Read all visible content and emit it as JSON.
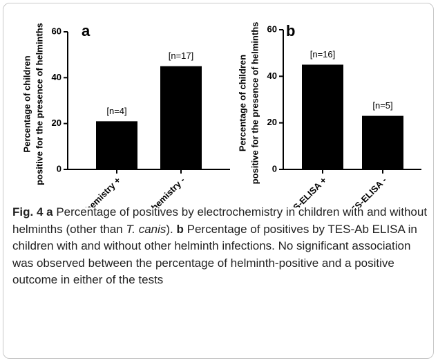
{
  "chart_data": [
    {
      "type": "bar",
      "panel": "a",
      "ylabel": [
        "Percentage of children",
        "positive for the presence of helminths"
      ],
      "categories": [
        "Electrochemistry +",
        "Electrochemistry -"
      ],
      "values": [
        21,
        45
      ],
      "annotations": [
        "[n=4]",
        "[n=17]"
      ],
      "color": "#000000",
      "ylim": [
        0,
        60
      ],
      "yticks": [
        0,
        20,
        40,
        60
      ]
    },
    {
      "type": "bar",
      "panel": "b",
      "ylabel": [
        "Percentage of children",
        "positive for the presence of helminths"
      ],
      "categories": [
        "Ab TES-ELISA +",
        "Ab TES-ELISA -"
      ],
      "values": [
        45,
        23
      ],
      "annotations": [
        "[n=16]",
        "[n=5]"
      ],
      "color": "#000000",
      "ylim": [
        0,
        60
      ],
      "yticks": [
        0,
        20,
        40,
        60
      ]
    }
  ],
  "caption": [
    {
      "text": "Fig. 4",
      "bold": true
    },
    {
      "text": " "
    },
    {
      "text": "a",
      "bold": true
    },
    {
      "text": " Percentage of positives by electrochemistry in children with and without helminths (other than "
    },
    {
      "text": "T. canis",
      "italic": true
    },
    {
      "text": "). "
    },
    {
      "text": "b",
      "bold": true
    },
    {
      "text": " Percentage of positives by TES-Ab ELISA in children with and without other helminth infections. No significant association was observed between the percentage of helminth-positive and a positive outcome in either of the tests"
    }
  ]
}
